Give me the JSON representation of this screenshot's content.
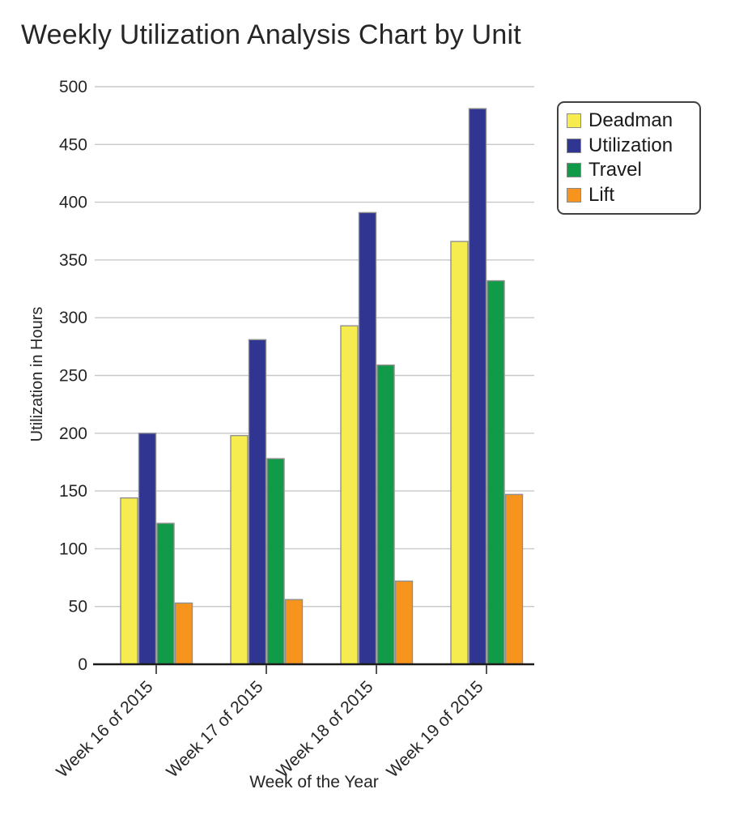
{
  "title": "Weekly Utilization Analysis Chart by Unit",
  "chart_data": {
    "type": "bar",
    "title": "Weekly Utilization Analysis Chart by Unit",
    "xlabel": "Week of the Year",
    "ylabel": "Utilization in Hours",
    "categories": [
      "Week 16 of 2015",
      "Week 17 of 2015",
      "Week 18 of 2015",
      "Week 19 of 2015"
    ],
    "series": [
      {
        "name": "Deadman",
        "color": "#F6EC4F",
        "values": [
          144,
          198,
          293,
          366
        ]
      },
      {
        "name": "Utilization",
        "color": "#2F3590",
        "values": [
          200,
          281,
          391,
          481
        ]
      },
      {
        "name": "Travel",
        "color": "#119A48",
        "values": [
          122,
          178,
          259,
          332
        ]
      },
      {
        "name": "Lift",
        "color": "#F7941E",
        "values": [
          53,
          56,
          72,
          147
        ]
      }
    ],
    "ylim": [
      0,
      500
    ],
    "ytick_step": 50,
    "grid": true,
    "legend_position": "upper right"
  },
  "colors": {
    "background": "#FFFFFF",
    "grid": "#C8C8C8",
    "axis": "#1A1A1A",
    "tick": "#555555",
    "bar_border": "#8F8F8F",
    "text": "#262626",
    "legend_border": "#404040"
  }
}
